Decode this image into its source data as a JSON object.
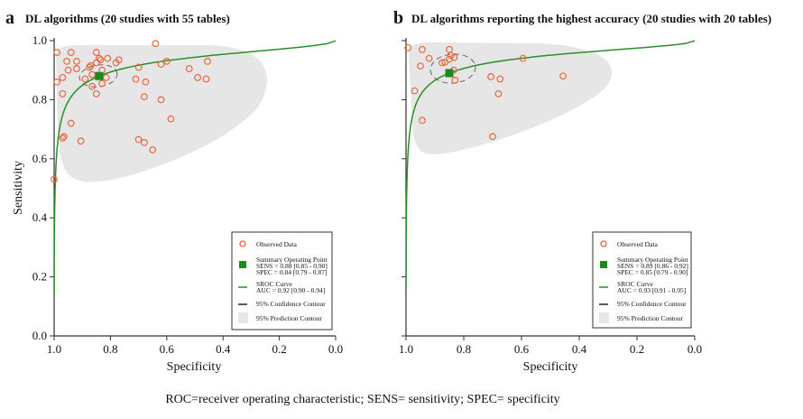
{
  "caption": "ROC=receiver operating characteristic; SENS= sensitivity; SPEC= specificity",
  "colors": {
    "observed": "#e8683f",
    "summary": "#1e8a1e",
    "sroc": "#2a8f2a",
    "confidence": "#666666",
    "prediction": "#e6e6e6"
  },
  "chart_data": [
    {
      "type": "scatter",
      "letter": "a",
      "title": "DL algorithms (20 studies with 55 tables)",
      "xlabel": "Specificity",
      "ylabel": "Sensitivity",
      "xlim": [
        1.0,
        0.0
      ],
      "ylim": [
        0.0,
        1.0
      ],
      "x_ticks": [
        "1.0",
        "0.8",
        "0.6",
        "0.4",
        "0.2",
        "0.0"
      ],
      "y_ticks": [
        "0.0",
        "0.2",
        "0.4",
        "0.6",
        "0.8",
        "1.0"
      ],
      "observed": [
        [
          0.99,
          0.96
        ],
        [
          0.94,
          0.96
        ],
        [
          0.955,
          0.93
        ],
        [
          0.92,
          0.93
        ],
        [
          0.95,
          0.9
        ],
        [
          0.92,
          0.905
        ],
        [
          0.97,
          0.875
        ],
        [
          0.99,
          0.86
        ],
        [
          0.97,
          0.82
        ],
        [
          0.94,
          0.72
        ],
        [
          0.97,
          0.67
        ],
        [
          0.965,
          0.675
        ],
        [
          0.905,
          0.66
        ],
        [
          1.0,
          0.53
        ],
        [
          0.85,
          0.96
        ],
        [
          0.64,
          0.99
        ],
        [
          0.84,
          0.94
        ],
        [
          0.835,
          0.935
        ],
        [
          0.81,
          0.94
        ],
        [
          0.77,
          0.935
        ],
        [
          0.78,
          0.925
        ],
        [
          0.85,
          0.925
        ],
        [
          0.875,
          0.91
        ],
        [
          0.87,
          0.915
        ],
        [
          0.83,
          0.9
        ],
        [
          0.865,
          0.885
        ],
        [
          0.89,
          0.87
        ],
        [
          0.815,
          0.875
        ],
        [
          0.83,
          0.855
        ],
        [
          0.865,
          0.845
        ],
        [
          0.85,
          0.82
        ],
        [
          0.7,
          0.91
        ],
        [
          0.62,
          0.92
        ],
        [
          0.6,
          0.93
        ],
        [
          0.71,
          0.87
        ],
        [
          0.675,
          0.86
        ],
        [
          0.68,
          0.81
        ],
        [
          0.62,
          0.8
        ],
        [
          0.585,
          0.735
        ],
        [
          0.7,
          0.665
        ],
        [
          0.68,
          0.655
        ],
        [
          0.65,
          0.63
        ],
        [
          0.52,
          0.905
        ],
        [
          0.49,
          0.875
        ],
        [
          0.46,
          0.87
        ],
        [
          0.455,
          0.93
        ]
      ],
      "summary_point": {
        "spec": 0.84,
        "sens": 0.88
      },
      "sroc_auc": 0.92,
      "legend": {
        "position": "bottom-right",
        "observed": "Observed Data",
        "summary": "Summary Operating Point",
        "sens": "SENS = 0.88 [0.85 - 0.90]",
        "spec": "SPEC = 0.84 [0.79 - 0.87]",
        "sroc": "SROC Curve",
        "auc": "AUC = 0.92 [0.90 - 0.94]",
        "confidence": "95% Confidence Contour",
        "prediction": "95% Prediction Contour"
      }
    },
    {
      "type": "scatter",
      "letter": "b",
      "title": "DL algorithms reporting the highest accuracy (20 studies with 20 tables)",
      "xlabel": "Specificity",
      "ylabel": "",
      "xlim": [
        1.0,
        0.0
      ],
      "ylim": [
        0.0,
        1.0
      ],
      "x_ticks": [
        "1.0",
        "0.8",
        "0.6",
        "0.4",
        "0.2",
        "0.0"
      ],
      "y_ticks": [],
      "observed": [
        [
          0.993,
          0.976
        ],
        [
          0.944,
          0.97
        ],
        [
          0.85,
          0.97
        ],
        [
          0.92,
          0.94
        ],
        [
          0.845,
          0.95
        ],
        [
          0.833,
          0.943
        ],
        [
          0.85,
          0.937
        ],
        [
          0.865,
          0.927
        ],
        [
          0.875,
          0.925
        ],
        [
          0.95,
          0.914
        ],
        [
          0.835,
          0.9
        ],
        [
          0.83,
          0.866
        ],
        [
          0.97,
          0.83
        ],
        [
          0.944,
          0.73
        ],
        [
          0.706,
          0.878
        ],
        [
          0.674,
          0.87
        ],
        [
          0.68,
          0.82
        ],
        [
          0.7,
          0.675
        ],
        [
          0.595,
          0.94
        ],
        [
          0.456,
          0.88
        ]
      ],
      "summary_point": {
        "spec": 0.85,
        "sens": 0.89
      },
      "sroc_auc": 0.93,
      "legend": {
        "position": "bottom-right",
        "observed": "Observed Data",
        "summary": "Summary Operating Point",
        "sens": "SENS = 0.89 [0.86 - 0.92]",
        "spec": "SPEC = 0.85 [0.79 - 0.90]",
        "sroc": "SROC Curve",
        "auc": "AUC = 0.93 [0.91 - 0.95]",
        "confidence": "95% Confidence Contour",
        "prediction": "95% Prediction Contour"
      }
    }
  ]
}
